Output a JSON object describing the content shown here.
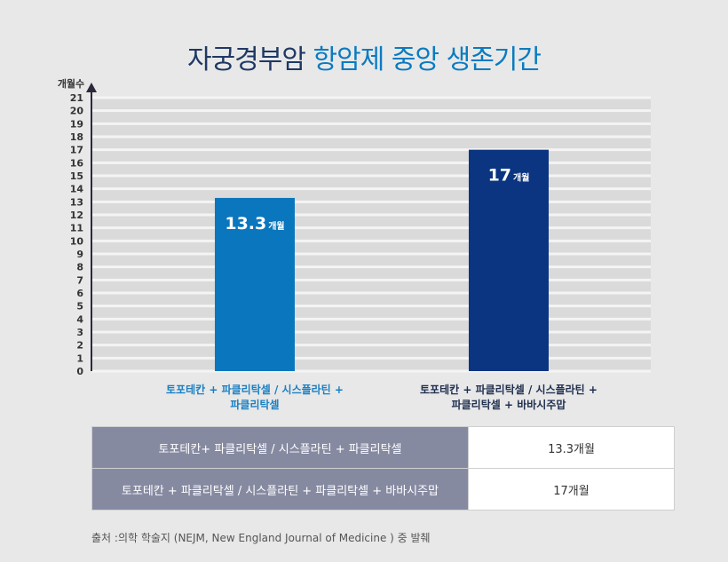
{
  "title": {
    "part1": "자궁경부암",
    "part2": "항암제 중앙 생존기간"
  },
  "chart_data": {
    "type": "bar",
    "ylabel": "개월수",
    "ylim": [
      0,
      21
    ],
    "yticks": [
      0,
      1,
      2,
      3,
      4,
      5,
      6,
      7,
      8,
      9,
      10,
      11,
      12,
      13,
      14,
      15,
      16,
      17,
      18,
      19,
      20,
      21
    ],
    "grid": true,
    "categories": [
      [
        "토포테칸 + 파클리탁셀 / 시스플라틴 +",
        "파클리탁셀"
      ],
      [
        "토포테칸 + 파클리탁셀 / 시스플라틴 +",
        "파클리탁셀 + 바바시주맙"
      ]
    ],
    "values": [
      13.3,
      17
    ],
    "value_labels": [
      {
        "num": "13.3",
        "unit": "개월"
      },
      {
        "num": "17",
        "unit": "개월"
      }
    ],
    "colors": [
      "#0a76bd",
      "#0b3580"
    ],
    "category_colors": [
      "#1a7fc2",
      "#1f2f4f"
    ]
  },
  "table": {
    "rows": [
      {
        "name": "토포테칸+ 파클리탁셀 / 시스플라틴 + 파클리탁셀",
        "value": "13.3개월"
      },
      {
        "name": "토포테칸 + 파클리탁셀 / 시스플라틴 + 파클리탁셀 + 바바시주맙",
        "value": "17개월"
      }
    ]
  },
  "source": "출처 :의학 학술지 (NEJM, New England Journal of Medicine ) 중 발췌"
}
